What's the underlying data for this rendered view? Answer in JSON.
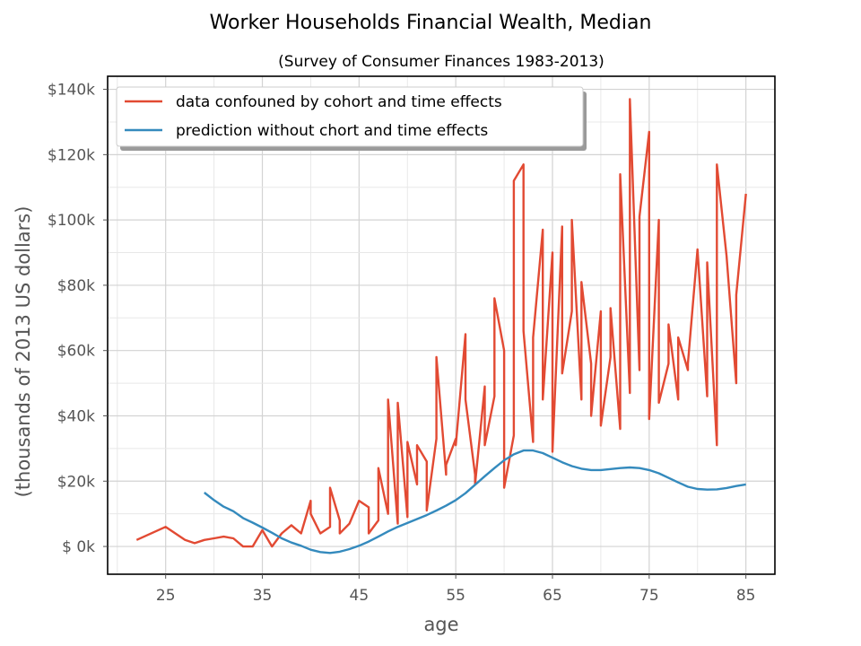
{
  "chart_data": {
    "type": "line",
    "title": "Worker Households Financial Wealth, Median",
    "subtitle": "(Survey of Consumer Finances 1983-2013)",
    "xlabel": "age",
    "ylabel": "(thousands of 2013 US dollars)",
    "xlim": [
      19,
      88
    ],
    "ylim": [
      -8.5,
      144
    ],
    "x_ticks": [
      25,
      35,
      45,
      55,
      65,
      75,
      85
    ],
    "y_ticks": [
      0,
      20,
      40,
      60,
      80,
      100,
      120,
      140
    ],
    "y_tick_labels": [
      "$ 0k",
      "$20k",
      "$40k",
      "$60k",
      "$80k",
      "$100k",
      "$120k",
      "$140k"
    ],
    "grid": true,
    "legend_position": "top-left",
    "series": [
      {
        "name": "data confouned by cohort and time effects",
        "color": "#e24a33",
        "x": [
          22,
          25,
          27,
          28,
          29,
          30,
          31,
          32,
          33,
          34,
          35,
          36,
          37,
          38,
          39,
          40,
          40,
          41,
          42,
          42,
          43,
          43,
          44,
          45,
          46,
          46,
          47,
          47,
          48,
          48,
          49,
          49,
          50,
          50,
          51,
          51,
          52,
          52,
          53,
          53,
          54,
          54,
          55,
          55,
          56,
          56,
          57,
          57,
          58,
          58,
          59,
          59,
          60,
          60,
          61,
          61,
          62,
          62,
          63,
          63,
          64,
          64,
          65,
          65,
          66,
          66,
          67,
          67,
          68,
          68,
          69,
          69,
          70,
          70,
          71,
          71,
          72,
          72,
          73,
          73,
          74,
          74,
          75,
          75,
          76,
          76,
          77,
          77,
          78,
          78,
          79,
          79,
          80,
          81,
          81,
          82,
          82,
          83,
          84,
          84,
          85
        ],
        "y": [
          2,
          6,
          2,
          1,
          2,
          2.5,
          3,
          2.5,
          0,
          0,
          5,
          0,
          4,
          6.5,
          4,
          14,
          10,
          4,
          6,
          18,
          8,
          4,
          7,
          14,
          12,
          4,
          8,
          24,
          10,
          45,
          7,
          44,
          9,
          32,
          19,
          31,
          26,
          11,
          33,
          58,
          22,
          25,
          33,
          31,
          65,
          45,
          22,
          19,
          49,
          31,
          46,
          76,
          60,
          18,
          34,
          112,
          117,
          66,
          32,
          64,
          97,
          45,
          90,
          29,
          98,
          53,
          72,
          100,
          45,
          81,
          56,
          40,
          72,
          37,
          58,
          73,
          36,
          114,
          47,
          137,
          54,
          101,
          127,
          39,
          100,
          44,
          56,
          68,
          45,
          64,
          54,
          56,
          91,
          46,
          87,
          31,
          117,
          89,
          50,
          77,
          108
        ]
      },
      {
        "name": "prediction without chort and time effects",
        "color": "#348abd",
        "x": [
          29,
          30,
          31,
          32,
          33,
          34,
          35,
          36,
          37,
          38,
          39,
          40,
          41,
          42,
          43,
          44,
          45,
          46,
          47,
          48,
          49,
          50,
          51,
          52,
          53,
          54,
          55,
          56,
          57,
          58,
          59,
          60,
          61,
          62,
          63,
          64,
          65,
          66,
          67,
          68,
          69,
          70,
          71,
          72,
          73,
          74,
          75,
          76,
          77,
          78,
          79,
          80,
          81,
          82,
          83,
          84,
          85
        ],
        "y": [
          16.5,
          14.2,
          12.2,
          10.8,
          8.7,
          7.3,
          5.8,
          4.2,
          2.5,
          1.2,
          0.2,
          -1.0,
          -1.7,
          -2.0,
          -1.6,
          -0.8,
          0.2,
          1.5,
          3.0,
          4.6,
          6.0,
          7.2,
          8.4,
          9.6,
          11.0,
          12.5,
          14.2,
          16.3,
          18.9,
          21.5,
          24.0,
          26.4,
          28.2,
          29.4,
          29.4,
          28.6,
          27.2,
          25.8,
          24.6,
          23.8,
          23.4,
          23.4,
          23.7,
          24.0,
          24.2,
          24.0,
          23.4,
          22.4,
          21.0,
          19.6,
          18.3,
          17.6,
          17.4,
          17.5,
          17.9,
          18.5,
          19.0
        ]
      }
    ]
  }
}
